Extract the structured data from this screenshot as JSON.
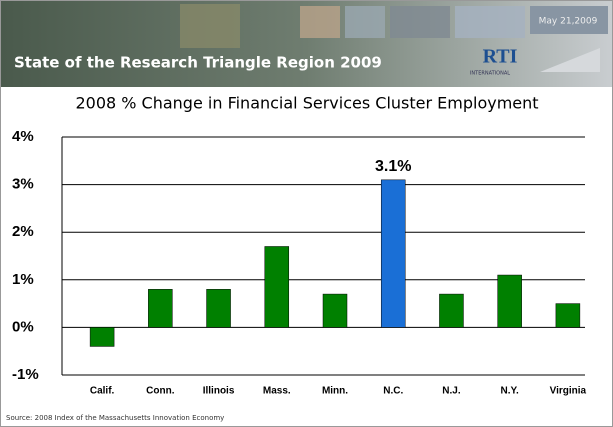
{
  "banner": {
    "title": "State of the Research Triangle Region 2009",
    "date": "May 21,2009",
    "logo": "RTI",
    "logo_sub": "INTERNATIONAL"
  },
  "chart_data": {
    "type": "bar",
    "title": "2008 % Change in Financial Services Cluster Employment",
    "categories": [
      "Calif.",
      "Conn.",
      "Illinois",
      "Mass.",
      "Minn.",
      "N.C.",
      "N.J.",
      "N.Y.",
      "Virginia"
    ],
    "values": [
      -0.4,
      0.8,
      0.8,
      1.7,
      0.7,
      3.1,
      0.7,
      1.1,
      0.5
    ],
    "value_labels": [
      null,
      null,
      null,
      null,
      null,
      "3.1%",
      null,
      null,
      null
    ],
    "colors": [
      "#008000",
      "#008000",
      "#008000",
      "#008000",
      "#008000",
      "#1a6fd6",
      "#008000",
      "#008000",
      "#008000"
    ],
    "ylim": [
      -1,
      4
    ],
    "yticks": [
      {
        "value": -1,
        "label": "-1%"
      },
      {
        "value": 0,
        "label": "0%"
      },
      {
        "value": 1,
        "label": "1%"
      },
      {
        "value": 2,
        "label": "2%"
      },
      {
        "value": 3,
        "label": "3%"
      },
      {
        "value": 4,
        "label": "4%"
      }
    ],
    "grid": true
  },
  "source": "Source: 2008 Index of the Massachusetts Innovation Economy"
}
